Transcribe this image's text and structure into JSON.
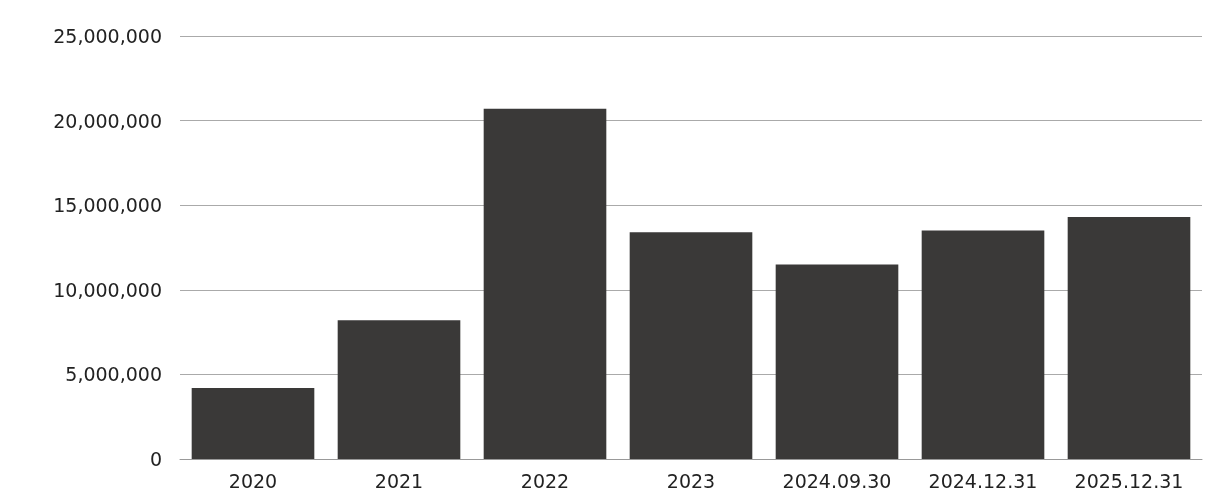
{
  "chart_data": {
    "type": "bar",
    "categories": [
      "2020",
      "2021",
      "2022",
      "2023",
      "2024.09.30",
      "2024.12.31",
      "2025.12.31"
    ],
    "values": [
      4200000,
      8200000,
      20700000,
      13400000,
      11500000,
      13500000,
      14300000
    ],
    "color": "#3a3938",
    "ylim": [
      0,
      25000000
    ],
    "yticks": [
      0,
      {
        "value": 5000000,
        "label": "5,000,000"
      },
      {
        "value": 10000000,
        "label": "10,000,000"
      },
      {
        "value": 15000000,
        "label": "15,000,000"
      },
      {
        "value": 20000000,
        "label": "20,000,000"
      },
      {
        "value": 25000000,
        "label": "25,000,000"
      }
    ],
    "grid": "y"
  }
}
